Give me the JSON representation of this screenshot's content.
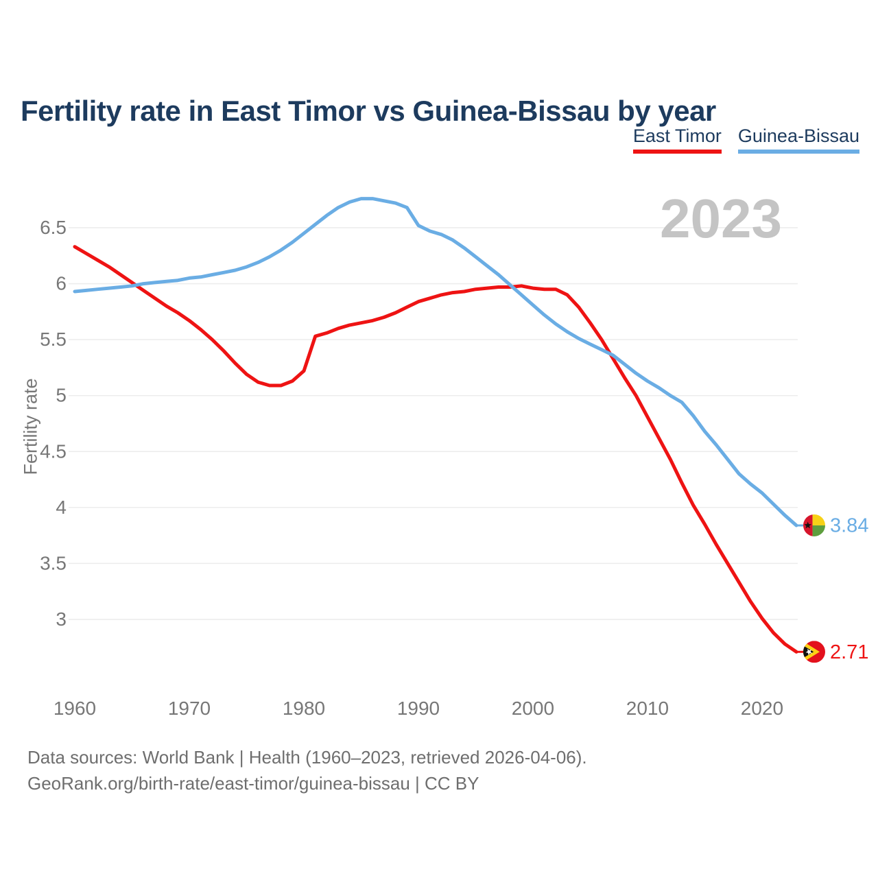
{
  "title": "Fertility rate in East Timor vs Guinea-Bissau by year",
  "watermark": "2023",
  "legend": {
    "items": [
      {
        "label": "East Timor",
        "color": "#ee1313"
      },
      {
        "label": "Guinea-Bissau",
        "color": "#6aade4"
      }
    ]
  },
  "footer": {
    "line1": "Data sources: World Bank | Health (1960–2023, retrieved 2026-04-06).",
    "line2": "GeoRank.org/birth-rate/east-timor/guinea-bissau | CC BY"
  },
  "colors": {
    "east_timor": "#ee1313",
    "guinea_bissau": "#6aade4",
    "title_text": "#1d3b5e",
    "axis_text": "#777777",
    "grid": "#ececec",
    "watermark": "#c4c4c4",
    "footer_text": "#6e6e6e"
  },
  "chart_data": {
    "type": "line",
    "title": "Fertility rate in East Timor vs Guinea-Bissau by year",
    "xlabel": "",
    "ylabel": "Fertility rate",
    "xlim": [
      1960,
      2023
    ],
    "ylim": [
      2.6,
      6.9
    ],
    "x_ticks": [
      1960,
      1970,
      1980,
      1990,
      2000,
      2010,
      2020
    ],
    "y_ticks": [
      3,
      3.5,
      4,
      4.5,
      5,
      5.5,
      6,
      6.5
    ],
    "grid": "horizontal",
    "legend_position": "top-right",
    "current_year_label": "2023",
    "x": [
      1960,
      1961,
      1962,
      1963,
      1964,
      1965,
      1966,
      1967,
      1968,
      1969,
      1970,
      1971,
      1972,
      1973,
      1974,
      1975,
      1976,
      1977,
      1978,
      1979,
      1980,
      1981,
      1982,
      1983,
      1984,
      1985,
      1986,
      1987,
      1988,
      1989,
      1990,
      1991,
      1992,
      1993,
      1994,
      1995,
      1996,
      1997,
      1998,
      1999,
      2000,
      2001,
      2002,
      2003,
      2004,
      2005,
      2006,
      2007,
      2008,
      2009,
      2010,
      2011,
      2012,
      2013,
      2014,
      2015,
      2016,
      2017,
      2018,
      2019,
      2020,
      2021,
      2022,
      2023
    ],
    "series": [
      {
        "name": "East Timor",
        "color": "#ee1313",
        "end_label": "2.71",
        "end_value": 2.71,
        "flag": "east-timor",
        "values": [
          6.33,
          6.27,
          6.21,
          6.15,
          6.08,
          6.01,
          5.94,
          5.87,
          5.8,
          5.74,
          5.67,
          5.59,
          5.5,
          5.4,
          5.29,
          5.19,
          5.12,
          5.09,
          5.09,
          5.13,
          5.22,
          5.53,
          5.56,
          5.6,
          5.63,
          5.65,
          5.67,
          5.7,
          5.74,
          5.79,
          5.84,
          5.87,
          5.9,
          5.92,
          5.93,
          5.95,
          5.96,
          5.97,
          5.97,
          5.98,
          5.96,
          5.95,
          5.95,
          5.9,
          5.79,
          5.65,
          5.5,
          5.33,
          5.16,
          5.0,
          4.81,
          4.62,
          4.43,
          4.22,
          4.02,
          3.85,
          3.67,
          3.5,
          3.33,
          3.16,
          3.01,
          2.88,
          2.78,
          2.71
        ]
      },
      {
        "name": "Guinea-Bissau",
        "color": "#6aade4",
        "end_label": "3.84",
        "end_value": 3.84,
        "flag": "guinea-bissau",
        "values": [
          5.93,
          5.94,
          5.95,
          5.96,
          5.97,
          5.98,
          6.0,
          6.01,
          6.02,
          6.03,
          6.05,
          6.06,
          6.08,
          6.1,
          6.12,
          6.15,
          6.19,
          6.24,
          6.3,
          6.37,
          6.45,
          6.53,
          6.61,
          6.68,
          6.73,
          6.76,
          6.76,
          6.74,
          6.72,
          6.68,
          6.52,
          6.47,
          6.44,
          6.39,
          6.32,
          6.24,
          6.16,
          6.08,
          5.99,
          5.9,
          5.81,
          5.72,
          5.64,
          5.57,
          5.51,
          5.46,
          5.41,
          5.36,
          5.28,
          5.2,
          5.13,
          5.07,
          5.0,
          4.94,
          4.82,
          4.68,
          4.56,
          4.43,
          4.3,
          4.21,
          4.13,
          4.03,
          3.93,
          3.84
        ]
      }
    ]
  }
}
